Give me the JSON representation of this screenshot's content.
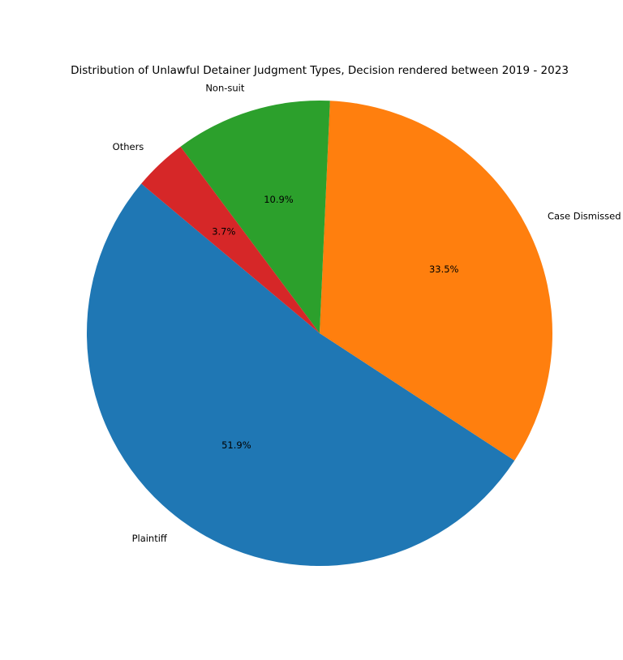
{
  "chart_data": {
    "type": "pie",
    "title": "Distribution of Unlawful Detainer Judgment Types, Decision rendered between 2019 - 2023",
    "categories": [
      "Plaintiff",
      "Case Dismissed",
      "Non-suit",
      "Others"
    ],
    "values": [
      51.9,
      33.5,
      10.9,
      3.7
    ],
    "value_labels": [
      "51.9%",
      "33.5%",
      "10.9%",
      "3.7%"
    ],
    "colors": [
      "#1f77b4",
      "#ff7f0e",
      "#2ca02c",
      "#d62728"
    ],
    "start_angle_deg": 140,
    "direction": "counterclockwise",
    "legend": "none"
  }
}
